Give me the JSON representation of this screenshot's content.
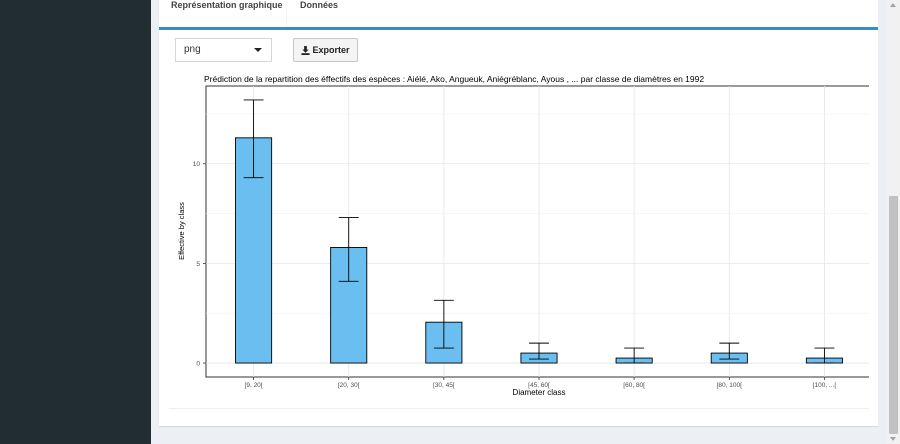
{
  "tabs": [
    {
      "label": "Représentation graphique",
      "active": true
    },
    {
      "label": "Données",
      "active": false
    }
  ],
  "toolbar": {
    "format_select_value": "png",
    "export_label": "Exporter",
    "export_icon": "download-icon"
  },
  "colors": {
    "sidebar": "#222d32",
    "accent": "#3c8dbc",
    "bar_fill": "#6bbef0",
    "bar_stroke": "#000000"
  },
  "chart_data": {
    "type": "bar",
    "title": "Prédiction de la repartition des éffectifs des espèces : Aiélé, Ako, Angueuk, Aniégréblanc, Ayous , ... par classe de diamètres en 1992",
    "xlabel": "Diameter class",
    "ylabel": "Effective by class",
    "categories": [
      "[9, 20[",
      "[20, 30[",
      "[30, 45[",
      "[45, 60[",
      "[60, 80[",
      "[80, 100[",
      "[100, ...["
    ],
    "values": [
      11.3,
      5.8,
      2.05,
      0.5,
      0.25,
      0.5,
      0.25
    ],
    "error_low": [
      9.3,
      4.1,
      0.75,
      0.2,
      0.0,
      0.2,
      0.0
    ],
    "error_high": [
      13.2,
      7.3,
      3.15,
      1.0,
      0.75,
      1.0,
      0.75
    ],
    "yticks": [
      0,
      5,
      10
    ],
    "ylim": [
      -0.7,
      13.9
    ],
    "grid": true
  }
}
